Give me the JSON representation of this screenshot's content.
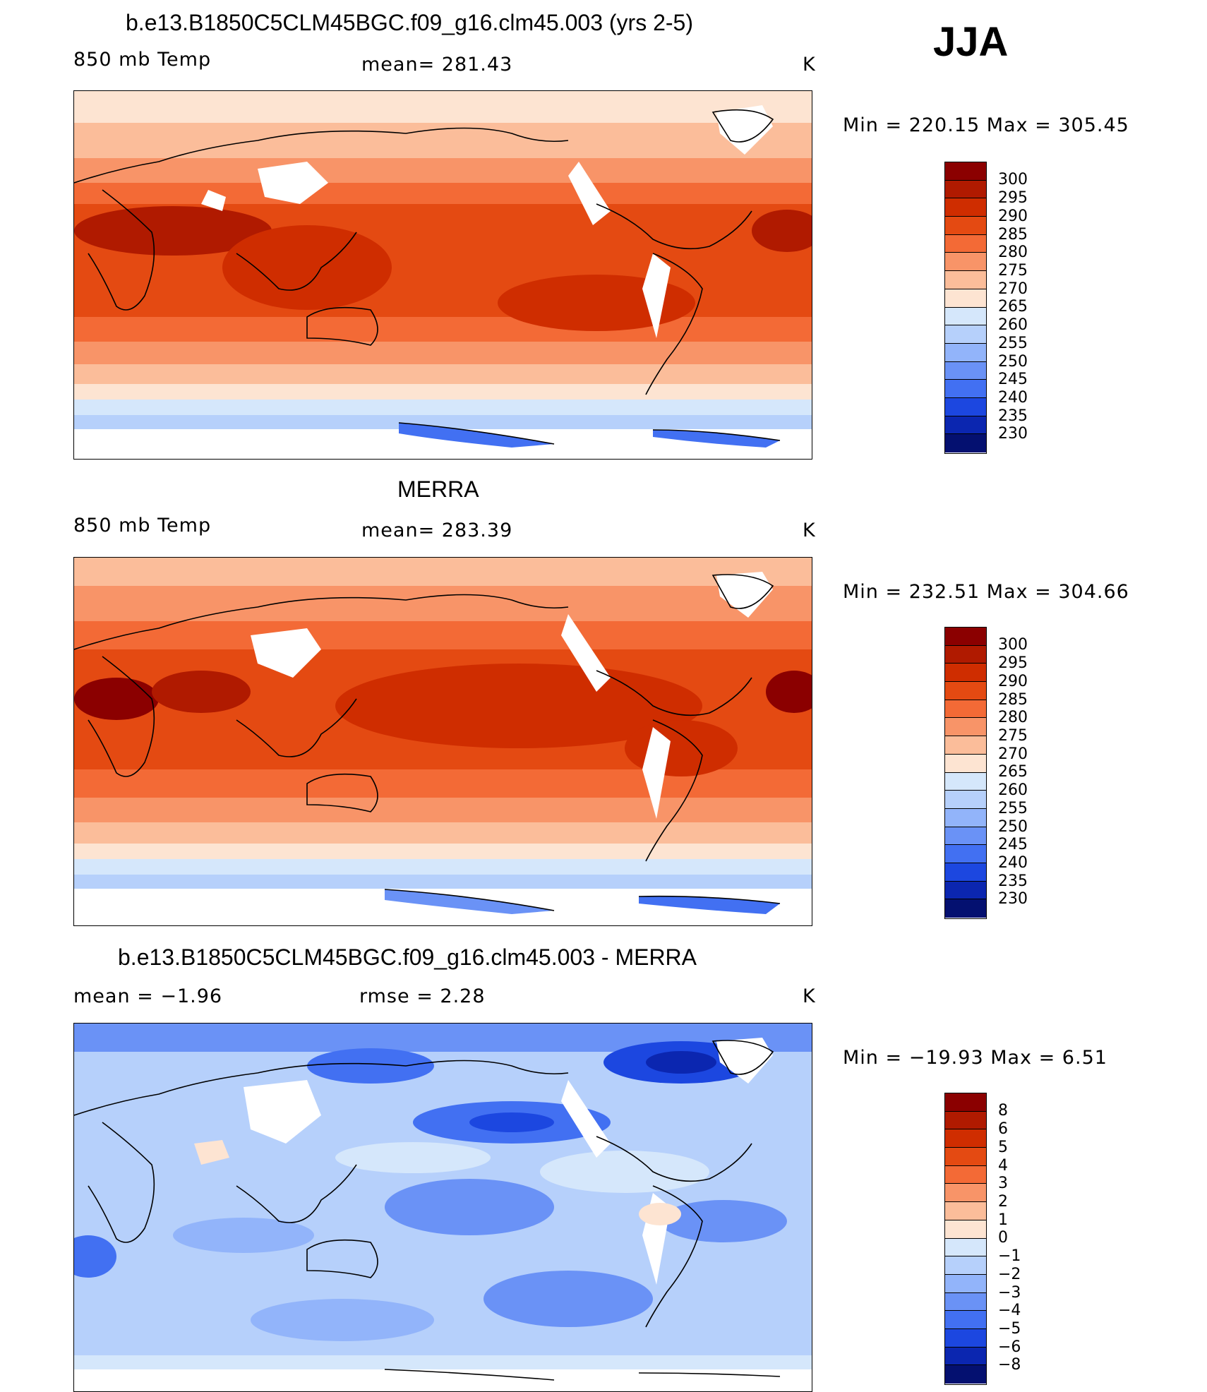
{
  "season": "JJA",
  "panels": [
    {
      "title": "b.e13.B1850C5CLM45BGC.f09_g16.clm45.003 (yrs 2-5)",
      "left": "850 mb Temp",
      "center": "mean= 281.43",
      "right": "K",
      "minmax": "Min = 220.15 Max = 305.45",
      "levels": [
        "300",
        "295",
        "290",
        "285",
        "280",
        "275",
        "270",
        "265",
        "260",
        "255",
        "250",
        "245",
        "240",
        "235",
        "230"
      ]
    },
    {
      "title": "MERRA",
      "left": "850 mb Temp",
      "center": "mean= 283.39",
      "right": "K",
      "minmax": "Min = 232.51 Max = 304.66",
      "levels": [
        "300",
        "295",
        "290",
        "285",
        "280",
        "275",
        "270",
        "265",
        "260",
        "255",
        "250",
        "245",
        "240",
        "235",
        "230"
      ]
    },
    {
      "title": "b.e13.B1850C5CLM45BGC.f09_g16.clm45.003 - MERRA",
      "left": "mean =  −1.96",
      "center": "rmse =   2.28",
      "right": "K",
      "minmax": "Min = −19.93 Max =   6.51",
      "levels": [
        "8",
        "6",
        "5",
        "4",
        "3",
        "2",
        "1",
        "0",
        "−1",
        "−2",
        "−3",
        "−4",
        "−5",
        "−6",
        "−8"
      ]
    }
  ],
  "colors": {
    "warm_scale": [
      "#8b0000",
      "#b01a00",
      "#cf2d00",
      "#e44a12",
      "#f36a36",
      "#f89468",
      "#fbbd9a",
      "#fde4d2",
      "#d5e7fb",
      "#b6d0fb",
      "#92b4fa",
      "#6a92f6",
      "#4270f2",
      "#1c47e0",
      "#0b26b0",
      "#041070"
    ],
    "diff_scale": [
      "#8b0000",
      "#b01a00",
      "#cf2d00",
      "#e44a12",
      "#f36a36",
      "#f89468",
      "#fbbd9a",
      "#fde4d2",
      "#d5e7fb",
      "#b6d0fb",
      "#92b4fa",
      "#6a92f6",
      "#4270f2",
      "#1c47e0",
      "#0b26b0",
      "#041070"
    ]
  }
}
